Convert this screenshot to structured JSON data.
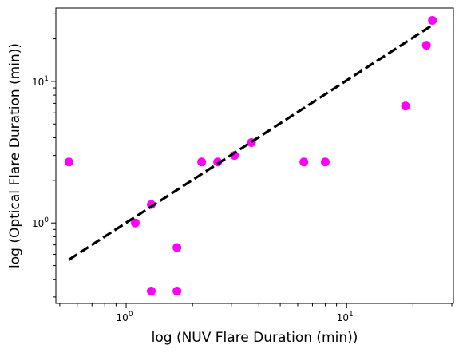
{
  "chart_data": {
    "type": "scatter",
    "xlabel": "log (NUV Flare Duration (min))",
    "ylabel": "log (Optical Flare Duration (min))",
    "x_scale": "log",
    "y_scale": "log",
    "xlim": [
      0.48,
      30.5
    ],
    "ylim": [
      0.27,
      33.0
    ],
    "x_ticks": [
      {
        "value": 1,
        "label": "10^0"
      },
      {
        "value": 10,
        "label": "10^1"
      }
    ],
    "y_ticks": [
      {
        "value": 1,
        "label": "10^0"
      },
      {
        "value": 10,
        "label": "10^1"
      }
    ],
    "grid": false,
    "series": [
      {
        "kind": "points",
        "color": "#ff00ff",
        "x": [
          0.55,
          1.1,
          1.3,
          1.3,
          1.7,
          1.7,
          2.2,
          2.6,
          3.1,
          3.7,
          6.4,
          8.0,
          18.5,
          23.0,
          24.5
        ],
        "y": [
          2.7,
          1.0,
          1.35,
          0.33,
          0.67,
          0.33,
          2.7,
          2.7,
          3.0,
          3.7,
          2.7,
          2.7,
          6.7,
          18.0,
          27.0
        ]
      },
      {
        "kind": "fit-line",
        "style": "dashed",
        "color": "#000000",
        "x": [
          0.55,
          24.5
        ],
        "y": [
          0.55,
          25.0
        ]
      }
    ]
  }
}
